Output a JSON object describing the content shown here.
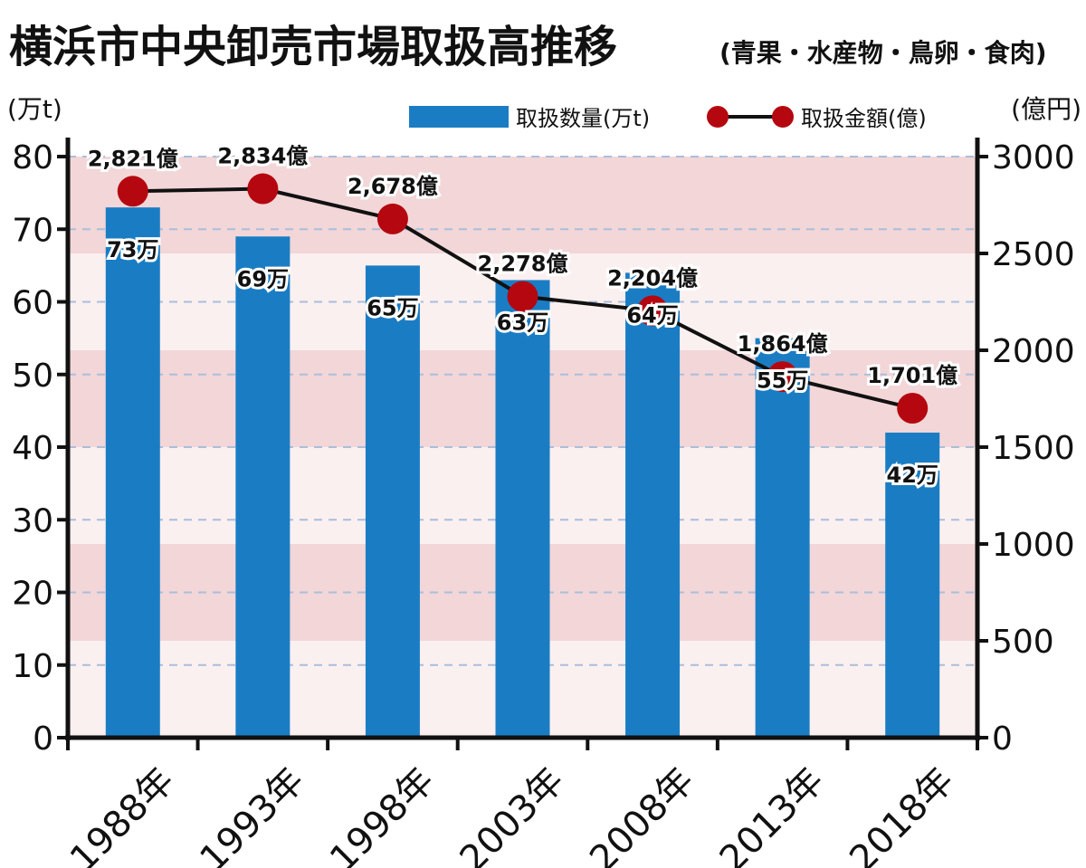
{
  "chart_data": {
    "type": "bar+line",
    "title": "横浜市中央卸売市場取扱高推移",
    "subtitle": "(青果・水産物・鳥卵・食肉)",
    "categories": [
      "1988年",
      "1993年",
      "1998年",
      "2003年",
      "2008年",
      "2013年",
      "2018年"
    ],
    "left_axis": {
      "label": "(万t)",
      "range": [
        0,
        80
      ],
      "ticks": [
        0,
        10,
        20,
        30,
        40,
        50,
        60,
        70,
        80
      ]
    },
    "right_axis": {
      "label": "(億円)",
      "range": [
        0,
        3000
      ],
      "ticks": [
        0,
        500,
        1000,
        1500,
        2000,
        2500,
        3000
      ]
    },
    "grid": true,
    "legend_position": "top-right",
    "series": [
      {
        "name": "取扱数量(万t)",
        "type": "bar",
        "axis": "left",
        "color": "#1a7dc4",
        "values": [
          73,
          69,
          65,
          63,
          64,
          55,
          42
        ],
        "labels": [
          "73万",
          "69万",
          "65万",
          "63万",
          "64万",
          "55万",
          "42万"
        ]
      },
      {
        "name": "取扱金額(億)",
        "type": "line",
        "axis": "right",
        "color": "#b5070f",
        "values": [
          2821,
          2834,
          2678,
          2278,
          2204,
          1864,
          1701
        ],
        "labels": [
          "2,821億",
          "2,834億",
          "2,678億",
          "2,278億",
          "2,204億",
          "1,864億",
          "1,701億"
        ]
      }
    ],
    "background_bands": {
      "dark": "#f2d6d8",
      "light": "#fbf0f0"
    }
  }
}
